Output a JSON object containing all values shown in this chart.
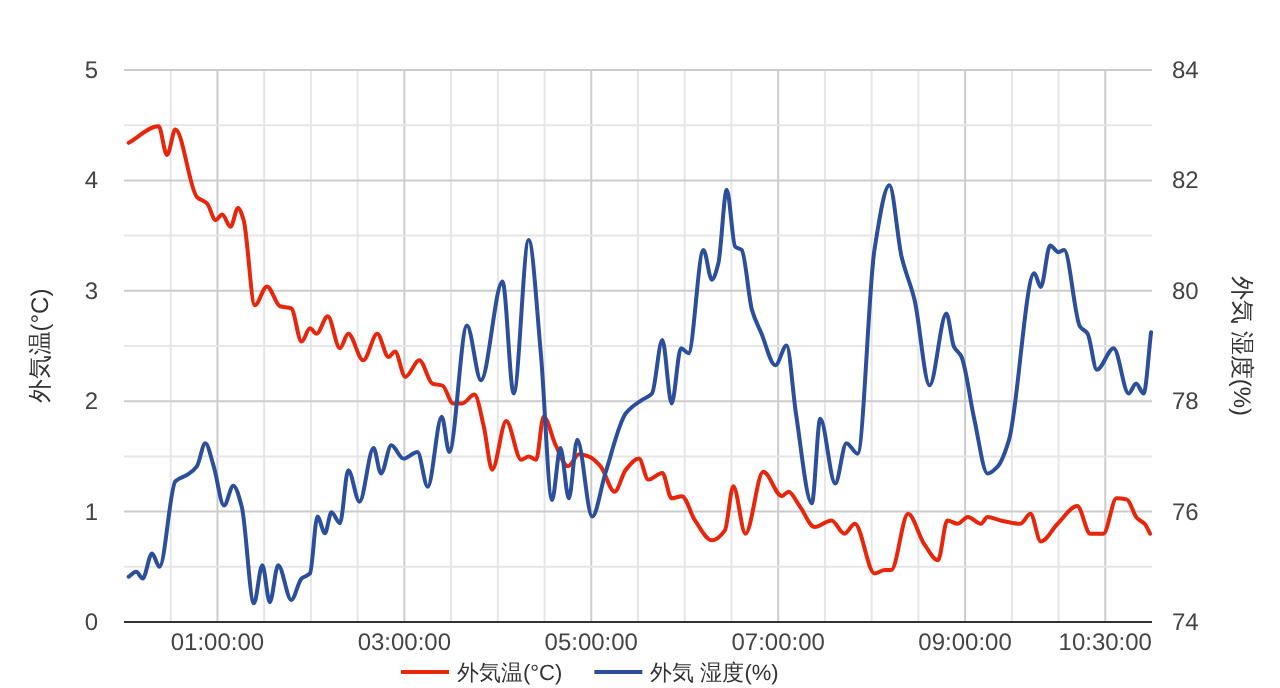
{
  "chart_data": {
    "type": "line",
    "ylabel": "外気温(°C)",
    "y2label": "外気 湿度(%)",
    "legend": "bottom",
    "grid": true,
    "xlim": [
      0,
      11
    ],
    "xticks": [
      {
        "value": 0.5,
        "label": null
      },
      {
        "value": 1,
        "label": "01:00:00"
      },
      {
        "value": 1.5,
        "label": null
      },
      {
        "value": 2,
        "label": null
      },
      {
        "value": 2.5,
        "label": null
      },
      {
        "value": 3,
        "label": "03:00:00"
      },
      {
        "value": 3.5,
        "label": null
      },
      {
        "value": 4,
        "label": null
      },
      {
        "value": 4.5,
        "label": null
      },
      {
        "value": 5,
        "label": "05:00:00"
      },
      {
        "value": 5.5,
        "label": null
      },
      {
        "value": 6,
        "label": null
      },
      {
        "value": 6.5,
        "label": null
      },
      {
        "value": 7,
        "label": "07:00:00"
      },
      {
        "value": 7.5,
        "label": null
      },
      {
        "value": 8,
        "label": null
      },
      {
        "value": 8.5,
        "label": null
      },
      {
        "value": 9,
        "label": "09:00:00"
      },
      {
        "value": 9.5,
        "label": null
      },
      {
        "value": 10,
        "label": null
      },
      {
        "value": 10.5,
        "label": "10:30:00"
      }
    ],
    "ylim": [
      0,
      5
    ],
    "yticks": [
      0,
      {
        "value": 0.5,
        "label": null
      },
      1,
      {
        "value": 1.5,
        "label": null
      },
      2,
      {
        "value": 2.5,
        "label": null
      },
      3,
      {
        "value": 3.5,
        "label": null
      },
      4,
      {
        "value": 4.5,
        "label": null
      },
      5
    ],
    "y2lim": [
      74,
      84
    ],
    "y2ticks": [
      74,
      76,
      78,
      80,
      82,
      84
    ],
    "series": [
      {
        "name": "外気温(°C)",
        "color": "#e8260c",
        "x": [
          0.05,
          0.37,
          0.46,
          0.55,
          0.78,
          0.89,
          0.98,
          1.05,
          1.14,
          1.22,
          1.28,
          1.4,
          1.53,
          1.67,
          1.79,
          1.9,
          1.99,
          2.06,
          2.18,
          2.31,
          2.4,
          2.56,
          2.71,
          2.83,
          2.9,
          3.01,
          3.16,
          3.3,
          3.41,
          3.52,
          3.62,
          3.75,
          3.85,
          3.94,
          4.09,
          4.25,
          4.33,
          4.41,
          4.49,
          4.62,
          4.75,
          4.87,
          4.97,
          5.1,
          5.25,
          5.37,
          5.51,
          5.61,
          5.76,
          5.86,
          5.97,
          6.11,
          6.29,
          6.43,
          6.52,
          6.65,
          6.84,
          7.04,
          7.11,
          7.23,
          7.39,
          7.57,
          7.71,
          7.82,
          8.03,
          8.14,
          8.21,
          8.39,
          8.56,
          8.71,
          8.81,
          8.92,
          9.03,
          9.17,
          9.24,
          9.38,
          9.59,
          9.7,
          9.81,
          9.99,
          10.2,
          10.34,
          10.48,
          10.62,
          10.73,
          10.84,
          10.92,
          10.98
        ],
        "values": [
          4.34,
          4.49,
          4.23,
          4.46,
          3.85,
          3.79,
          3.64,
          3.69,
          3.58,
          3.75,
          3.64,
          2.87,
          3.04,
          2.86,
          2.84,
          2.54,
          2.66,
          2.61,
          2.77,
          2.48,
          2.61,
          2.37,
          2.61,
          2.4,
          2.45,
          2.22,
          2.37,
          2.16,
          2.14,
          1.98,
          1.98,
          2.06,
          1.77,
          1.38,
          1.82,
          1.47,
          1.5,
          1.47,
          1.86,
          1.6,
          1.41,
          1.52,
          1.5,
          1.41,
          1.18,
          1.38,
          1.48,
          1.29,
          1.35,
          1.12,
          1.14,
          0.92,
          0.74,
          0.83,
          1.23,
          0.8,
          1.36,
          1.14,
          1.18,
          1.05,
          0.86,
          0.92,
          0.8,
          0.89,
          0.44,
          0.47,
          0.47,
          0.98,
          0.71,
          0.56,
          0.92,
          0.89,
          0.95,
          0.89,
          0.95,
          0.92,
          0.89,
          0.98,
          0.73,
          0.89,
          1.05,
          0.8,
          0.8,
          1.12,
          1.11,
          0.94,
          0.89,
          0.8
        ]
      },
      {
        "name": "外気 湿度(%)",
        "color": "#2c4f9b",
        "axis": "y2",
        "x": [
          0.05,
          0.13,
          0.2,
          0.3,
          0.38,
          0.55,
          0.68,
          0.78,
          0.87,
          0.96,
          1.07,
          1.17,
          1.26,
          1.39,
          1.48,
          1.56,
          1.65,
          1.79,
          1.9,
          1.99,
          2.07,
          2.15,
          2.22,
          2.31,
          2.4,
          2.52,
          2.67,
          2.75,
          2.86,
          2.99,
          3.14,
          3.25,
          3.4,
          3.48,
          3.67,
          3.82,
          4.05,
          4.17,
          4.33,
          4.46,
          4.58,
          4.67,
          4.76,
          4.85,
          5.01,
          5.15,
          5.37,
          5.54,
          5.65,
          5.76,
          5.86,
          5.96,
          6.04,
          6.2,
          6.29,
          6.36,
          6.45,
          6.54,
          6.61,
          6.72,
          6.82,
          6.97,
          7.09,
          7.19,
          7.36,
          7.45,
          7.61,
          7.73,
          7.85,
          8.03,
          8.19,
          8.32,
          8.46,
          8.62,
          8.8,
          8.88,
          8.96,
          9.1,
          9.24,
          9.35,
          9.47,
          9.74,
          9.81,
          9.91,
          10.0,
          10.06,
          10.23,
          10.31,
          10.41,
          10.59,
          10.75,
          10.83,
          10.91,
          10.99
        ],
        "values": [
          74.82,
          74.91,
          74.79,
          75.24,
          75.0,
          76.55,
          76.67,
          76.82,
          77.24,
          76.82,
          76.11,
          76.47,
          76.09,
          74.34,
          75.03,
          74.36,
          75.03,
          74.4,
          74.79,
          74.88,
          75.91,
          75.61,
          75.99,
          75.79,
          76.75,
          76.18,
          77.15,
          76.69,
          77.2,
          76.96,
          77.08,
          76.45,
          77.72,
          77.08,
          79.37,
          78.38,
          80.17,
          78.14,
          80.92,
          78.87,
          76.21,
          77.15,
          76.24,
          77.3,
          75.91,
          76.69,
          77.78,
          78.02,
          78.14,
          79.11,
          77.96,
          78.96,
          78.87,
          80.74,
          80.2,
          80.5,
          81.83,
          80.8,
          80.74,
          79.65,
          79.23,
          78.65,
          79.01,
          77.78,
          76.15,
          77.68,
          76.51,
          77.24,
          77.05,
          80.74,
          81.91,
          80.62,
          79.83,
          78.29,
          79.59,
          78.99,
          78.81,
          77.66,
          76.69,
          76.82,
          77.3,
          80.32,
          80.07,
          80.82,
          80.7,
          80.74,
          79.35,
          79.23,
          78.57,
          78.96,
          78.14,
          78.32,
          78.14,
          79.25
        ]
      }
    ]
  }
}
